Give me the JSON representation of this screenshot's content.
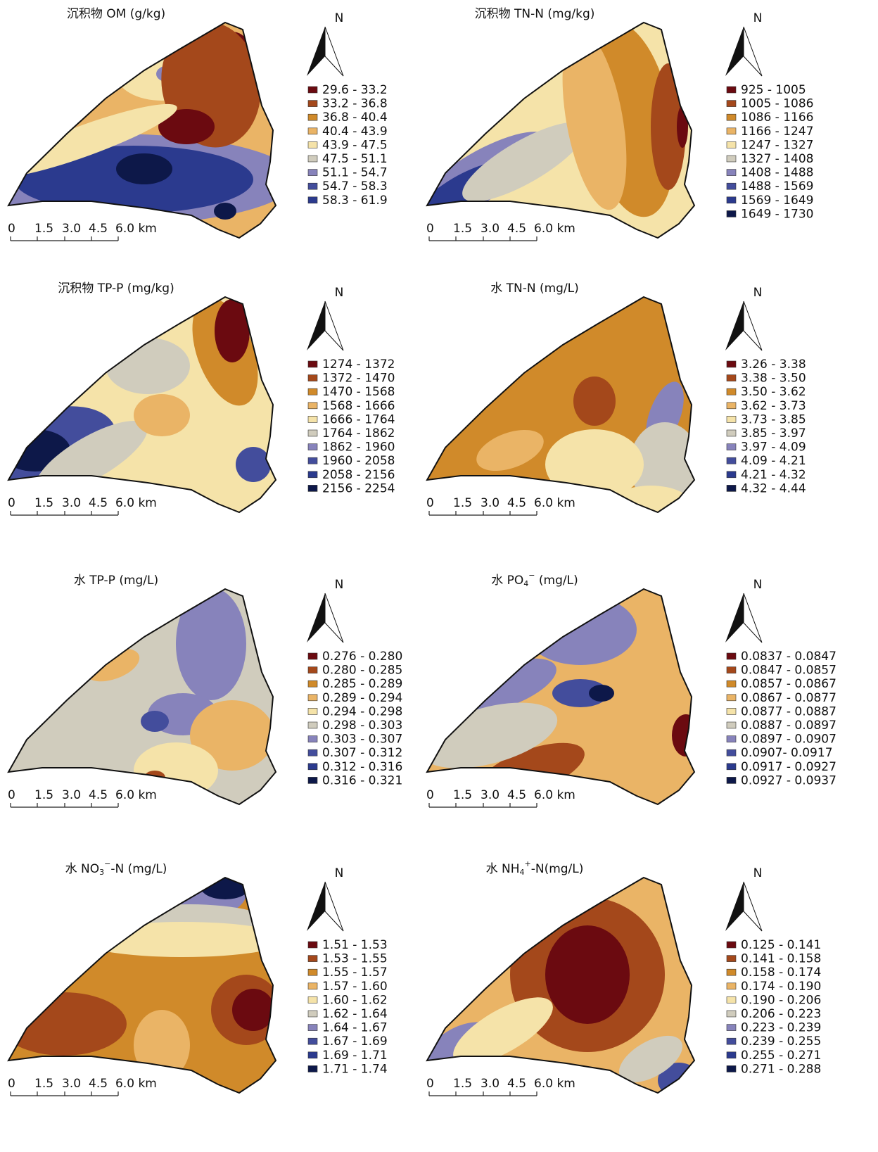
{
  "panels": [
    {
      "title": "沉积物  OM (g/kg)",
      "north": "N",
      "legend": [
        "29.6 - 33.2",
        "33.2 - 36.8",
        "36.8 - 40.4",
        "40.4 - 43.9",
        "43.9 - 47.5",
        "47.5 - 51.1",
        "51.1 - 54.7",
        "54.7 - 58.3",
        "58.3 - 61.9"
      ],
      "scale": [
        "0",
        "1.5",
        "3.0",
        "4.5",
        "6.0 km"
      ]
    },
    {
      "title": "沉积物 TN-N (mg/kg)",
      "north": "N",
      "legend": [
        "925 - 1005",
        "1005 - 1086",
        "1086 - 1166",
        "1166 - 1247",
        "1247 - 1327",
        "1327 - 1408",
        "1408 - 1488",
        "1488 - 1569",
        "1569 - 1649",
        "1649 - 1730"
      ],
      "scale": [
        "0",
        "1.5",
        "3.0",
        "4.5",
        "6.0 km"
      ]
    },
    {
      "title": "沉积物  TP-P (mg/kg)",
      "north": "N",
      "legend": [
        "1274 - 1372",
        "1372 - 1470",
        "1470 - 1568",
        "1568 - 1666",
        "1666 - 1764",
        "1764 - 1862",
        "1862 - 1960",
        "1960 - 2058",
        "2058 - 2156",
        "2156 - 2254"
      ],
      "scale": [
        "0",
        "1.5",
        "3.0",
        "4.5",
        "6.0 km"
      ]
    },
    {
      "title": "水  TN-N (mg/L)",
      "north": "N",
      "legend": [
        "3.26 - 3.38",
        "3.38 - 3.50",
        "3.50 - 3.62",
        "3.62 - 3.73",
        "3.73 - 3.85",
        "3.85 - 3.97",
        "3.97 - 4.09",
        "4.09 - 4.21",
        "4.21 - 4.32",
        "4.32 - 4.44"
      ],
      "scale": [
        "0",
        "1.5",
        "3.0",
        "4.5",
        "6.0 km"
      ]
    },
    {
      "title": "水  TP-P (mg/L)",
      "north": "N",
      "legend": [
        "0.276 - 0.280",
        "0.280 - 0.285",
        "0.285 - 0.289",
        "0.289 - 0.294",
        "0.294 - 0.298",
        "0.298 - 0.303",
        "0.303 - 0.307",
        "0.307 - 0.312",
        "0.312 - 0.316",
        "0.316 - 0.321"
      ],
      "scale": [
        "0",
        "1.5",
        "3.0",
        "4.5",
        "6.0 km"
      ]
    },
    {
      "title": {
        "main": "水  PO",
        "subscript": "4",
        "superscript": "−",
        "rest": " (mg/L)"
      },
      "north": "N",
      "legend": [
        "0.0837 - 0.0847",
        "0.0847 - 0.0857",
        "0.0857 - 0.0867",
        "0.0867 - 0.0877",
        "0.0877 - 0.0887",
        "0.0887 - 0.0897",
        "0.0897 - 0.0907",
        "0.0907- 0.0917",
        "0.0917 - 0.0927",
        "0.0927 - 0.0937"
      ],
      "scale": [
        "0",
        "1.5",
        "3.0",
        "4.5",
        "6.0 km"
      ]
    },
    {
      "title": {
        "main": "水  NO",
        "subscript": "3",
        "superscript": "−",
        "rest": "-N (mg/L)"
      },
      "north": "N",
      "legend": [
        "1.51 - 1.53",
        "1.53 - 1.55",
        "1.55 - 1.57",
        "1.57 - 1.60",
        "1.60 - 1.62",
        "1.62 - 1.64",
        "1.64 - 1.67",
        "1.67 - 1.69",
        "1.69 - 1.71",
        "1.71 - 1.74"
      ],
      "scale": [
        "0",
        "1.5",
        "3.0",
        "4.5",
        "6.0 km"
      ]
    },
    {
      "title": {
        "main": "水  NH",
        "subscript": "4",
        "superscript": "+",
        "rest": "-N(mg/L)"
      },
      "north": "N",
      "legend": [
        "0.125 - 0.141",
        "0.141 - 0.158",
        "0.158 - 0.174",
        "0.174 - 0.190",
        "0.190 - 0.206",
        "0.206 - 0.223",
        "0.223 - 0.239",
        "0.239 - 0.255",
        "0.255 - 0.271",
        "0.271 - 0.288"
      ],
      "scale": [
        "0",
        "1.5",
        "3.0",
        "4.5",
        "6.0 km"
      ]
    }
  ]
}
